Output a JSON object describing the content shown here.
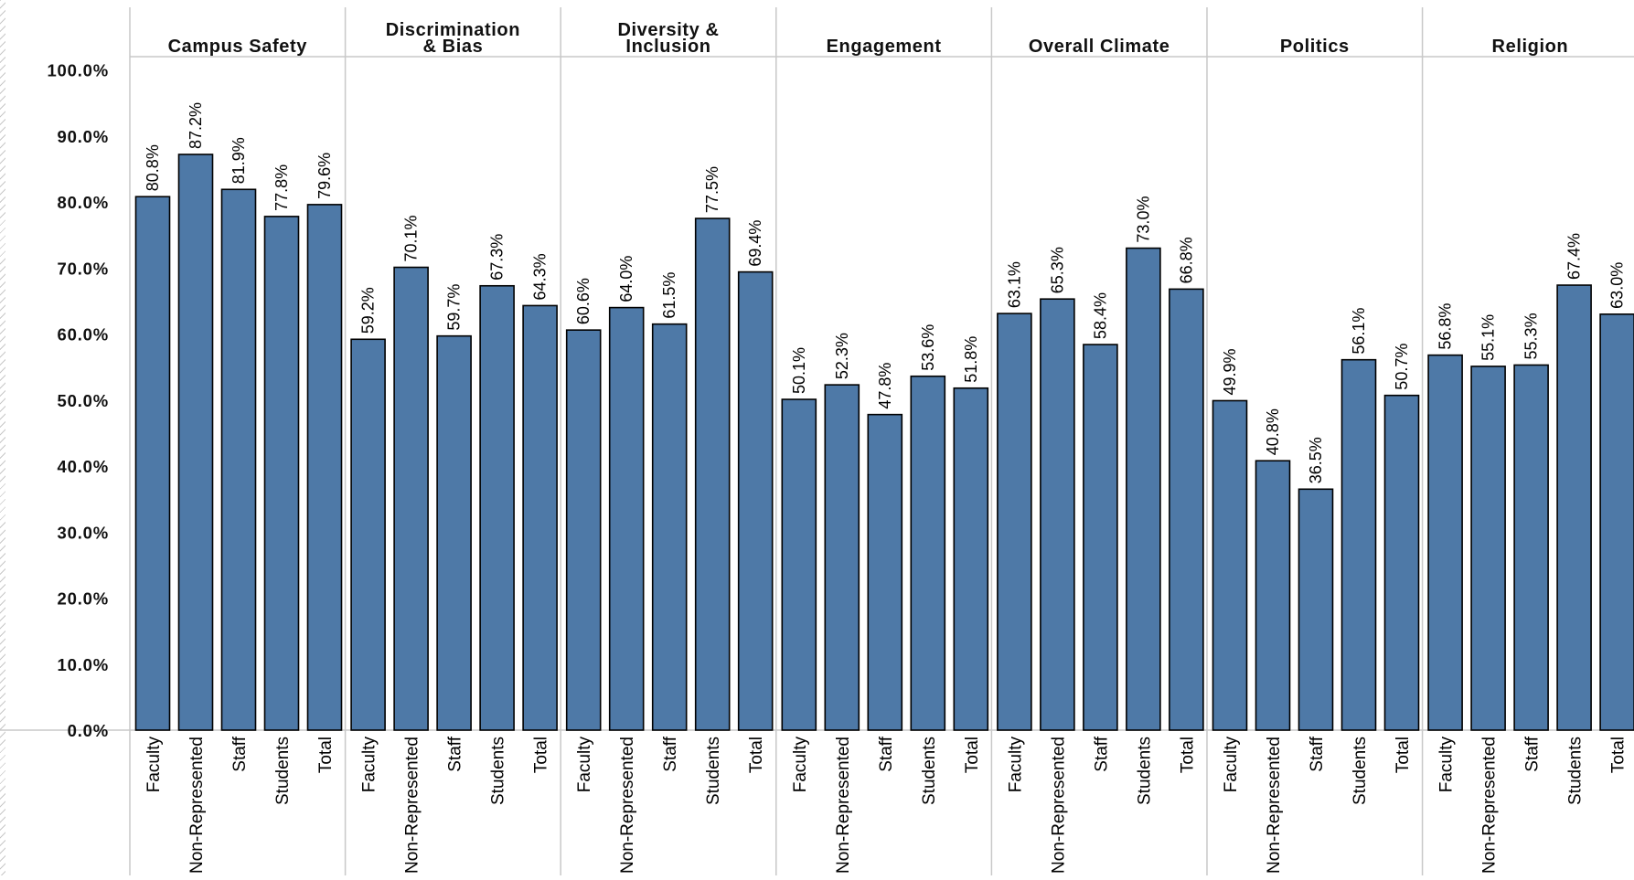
{
  "chart_data": {
    "type": "bar",
    "ylim": [
      0,
      100
    ],
    "yticks": [
      "0.0%",
      "10.0%",
      "20.0%",
      "30.0%",
      "40.0%",
      "50.0%",
      "60.0%",
      "70.0%",
      "80.0%",
      "90.0%",
      "100.0%"
    ],
    "grid": false,
    "bar_color": "#4e79a7",
    "categories": [
      "Faculty",
      "Non-Represented",
      "Staff",
      "Students",
      "Total"
    ],
    "panels": [
      {
        "title": [
          "Campus Safety"
        ],
        "values": [
          80.8,
          87.2,
          81.9,
          77.8,
          79.6
        ],
        "labels": [
          "80.8%",
          "87.2%",
          "81.9%",
          "77.8%",
          "79.6%"
        ]
      },
      {
        "title": [
          "Discrimination",
          "& Bias"
        ],
        "values": [
          59.2,
          70.1,
          59.7,
          67.3,
          64.3
        ],
        "labels": [
          "59.2%",
          "70.1%",
          "59.7%",
          "67.3%",
          "64.3%"
        ]
      },
      {
        "title": [
          "Diversity &",
          "Inclusion"
        ],
        "values": [
          60.6,
          64.0,
          61.5,
          77.5,
          69.4
        ],
        "labels": [
          "60.6%",
          "64.0%",
          "61.5%",
          "77.5%",
          "69.4%"
        ]
      },
      {
        "title": [
          "Engagement"
        ],
        "values": [
          50.1,
          52.3,
          47.8,
          53.6,
          51.8
        ],
        "labels": [
          "50.1%",
          "52.3%",
          "47.8%",
          "53.6%",
          "51.8%"
        ]
      },
      {
        "title": [
          "Overall Climate"
        ],
        "values": [
          63.1,
          65.3,
          58.4,
          73.0,
          66.8
        ],
        "labels": [
          "63.1%",
          "65.3%",
          "58.4%",
          "73.0%",
          "66.8%"
        ]
      },
      {
        "title": [
          "Politics"
        ],
        "values": [
          49.9,
          40.8,
          36.5,
          56.1,
          50.7
        ],
        "labels": [
          "49.9%",
          "40.8%",
          "36.5%",
          "56.1%",
          "50.7%"
        ]
      },
      {
        "title": [
          "Religion"
        ],
        "values": [
          56.8,
          55.1,
          55.3,
          67.4,
          63.0
        ],
        "labels": [
          "56.8%",
          "55.1%",
          "55.3%",
          "67.4%",
          "63.0%"
        ]
      }
    ]
  }
}
